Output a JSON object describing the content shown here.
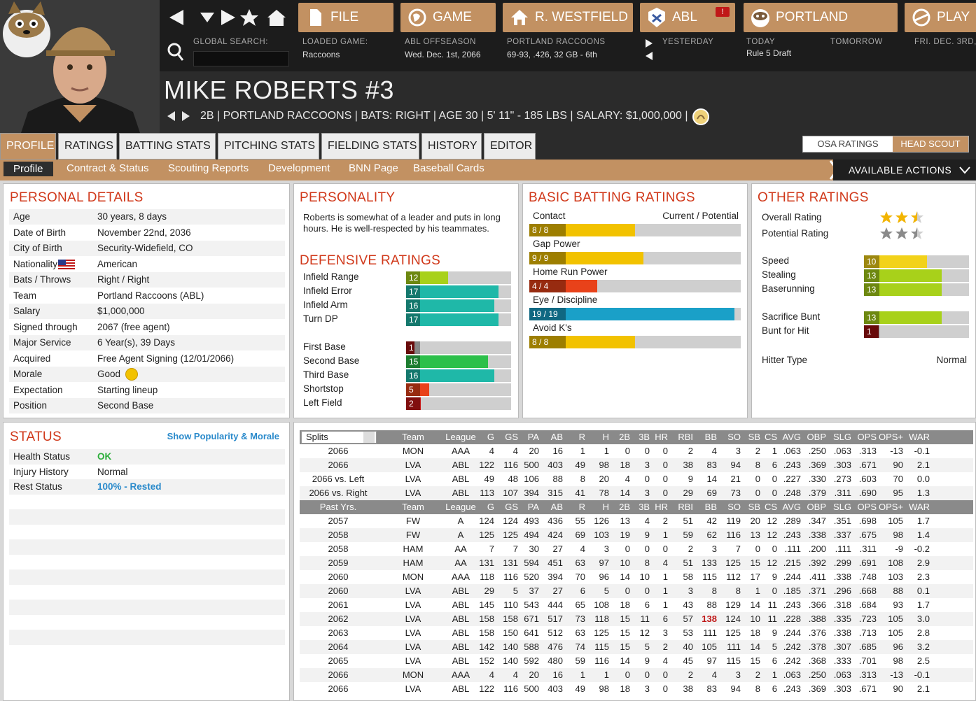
{
  "nav": {
    "file": "FILE",
    "game": "GAME",
    "team": "R. WESTFIELD",
    "league": "ABL",
    "club": "PORTLAND",
    "play": "PLAY",
    "global_search_label": "GLOBAL SEARCH:",
    "loaded_game_label": "LOADED GAME:",
    "loaded_game_value": "Raccoons",
    "abl_offseason_label": "ABL OFFSEASON",
    "abl_offseason_date": "Wed. Dec. 1st, 2066",
    "team_label": "PORTLAND RACCOONS",
    "team_record": "69-93, .426, 32 GB - 6th",
    "yesterday_label": "YESTERDAY",
    "today_label": "TODAY",
    "today_value": "Rule 5 Draft",
    "tomorrow_label": "TOMORROW",
    "date_label": "FRI. DEC. 3RD,",
    "badge": "!"
  },
  "player": {
    "name": "MIKE ROBERTS  #3",
    "bio": "2B | PORTLAND RACCOONS  |  BATS: RIGHT  |  AGE 30  |  5' 11\" - 185 LBS  |  SALARY: $1,000,000  |"
  },
  "tabs": [
    "PROFILE",
    "RATINGS",
    "BATTING STATS",
    "PITCHING STATS",
    "FIELDING STATS",
    "HISTORY",
    "EDITOR"
  ],
  "scout_toggle": {
    "osa": "OSA RATINGS",
    "head": "HEAD SCOUT"
  },
  "subtabs": [
    "Profile",
    "Contract & Status",
    "Scouting Reports",
    "Development",
    "BNN Page",
    "Baseball Cards"
  ],
  "available_actions": "AVAILABLE ACTIONS",
  "personal": {
    "title": "PERSONAL DETAILS",
    "rows": [
      {
        "k": "Age",
        "v": "30 years, 8 days"
      },
      {
        "k": "Date of Birth",
        "v": "November 22nd, 2036"
      },
      {
        "k": "City of Birth",
        "v": "Security-Widefield, CO"
      },
      {
        "k": "Nationality",
        "v": "American"
      },
      {
        "k": "Bats / Throws",
        "v": "Right / Right"
      },
      {
        "k": "Team",
        "v": "Portland Raccoons (ABL)"
      },
      {
        "k": "Salary",
        "v": "$1,000,000"
      },
      {
        "k": "Signed through",
        "v": "2067 (free agent)"
      },
      {
        "k": "Major Service",
        "v": "6 Year(s), 39 Days"
      },
      {
        "k": "Acquired",
        "v": "Free Agent Signing (12/01/2066)"
      },
      {
        "k": "Morale",
        "v": "Good"
      },
      {
        "k": "Expectation",
        "v": "Starting lineup"
      },
      {
        "k": "Position",
        "v": "Second Base"
      }
    ]
  },
  "personality": {
    "title": "PERSONALITY",
    "text": "Roberts is somewhat of a leader and puts in long hours. He is well-respected by his teammates."
  },
  "defense": {
    "title": "DEFENSIVE RATINGS",
    "rows": [
      {
        "k": "Infield Range",
        "v": "12",
        "pct": 0.4,
        "color": "#a8d11a"
      },
      {
        "k": "Infield Error",
        "v": "17",
        "pct": 0.88,
        "color": "#1fb8a8"
      },
      {
        "k": "Infield Arm",
        "v": "16",
        "pct": 0.84,
        "color": "#1fb8a8"
      },
      {
        "k": "Turn DP",
        "v": "17",
        "pct": 0.88,
        "color": "#1fb8a8"
      },
      {
        "k": "First Base",
        "v": "1",
        "pct": 0.08,
        "color": "#a01010"
      },
      {
        "k": "Second Base",
        "v": "15",
        "pct": 0.78,
        "color": "#2cc04a"
      },
      {
        "k": "Third Base",
        "v": "16",
        "pct": 0.84,
        "color": "#1fb8a8"
      },
      {
        "k": "Shortstop",
        "v": "5",
        "pct": 0.22,
        "color": "#e8421a"
      },
      {
        "k": "Left Field",
        "v": "2",
        "pct": 0.14,
        "color": "#c61818"
      }
    ]
  },
  "batting": {
    "title": "BASIC BATTING RATINGS",
    "header": "Current / Potential",
    "rows": [
      {
        "k": "Contact",
        "v": "8 / 8",
        "pct": 0.5,
        "color": "#f2c200"
      },
      {
        "k": "Gap Power",
        "v": "9 / 9",
        "pct": 0.54,
        "color": "#f2c200"
      },
      {
        "k": "Home Run Power",
        "v": "4 / 4",
        "pct": 0.32,
        "color": "#e8421a"
      },
      {
        "k": "Eye / Discipline",
        "v": "19 / 19",
        "pct": 0.97,
        "color": "#1aa0c8"
      },
      {
        "k": "Avoid K's",
        "v": "8 / 8",
        "pct": 0.5,
        "color": "#f2c200"
      }
    ]
  },
  "other": {
    "title": "OTHER RATINGS",
    "overall_label": "Overall Rating",
    "overall_stars": 2.5,
    "potential_label": "Potential Rating",
    "potential_stars": 2.5,
    "rows": [
      {
        "k": "Speed",
        "v": "10",
        "pct": 0.6,
        "color": "#f2d21a"
      },
      {
        "k": "Stealing",
        "v": "13",
        "pct": 0.74,
        "color": "#a8d11a"
      },
      {
        "k": "Baserunning",
        "v": "13",
        "pct": 0.74,
        "color": "#a8d11a"
      },
      {
        "k": "Sacrifice Bunt",
        "v": "13",
        "pct": 0.74,
        "color": "#a8d11a"
      },
      {
        "k": "Bunt for Hit",
        "v": "1",
        "pct": 0.14,
        "color": "#a01010"
      }
    ],
    "hitter_type_label": "Hitter Type",
    "hitter_type": "Normal"
  },
  "status": {
    "title": "STATUS",
    "link": "Show Popularity & Morale",
    "rows": [
      {
        "k": "Health Status",
        "v": "OK"
      },
      {
        "k": "Injury History",
        "v": "Normal"
      },
      {
        "k": "Rest Status",
        "v": "100% - Rested"
      }
    ]
  },
  "stats": {
    "splits_label": "Splits",
    "columns": [
      "Team",
      "League",
      "G",
      "GS",
      "PA",
      "AB",
      "R",
      "H",
      "2B",
      "3B",
      "HR",
      "RBI",
      "BB",
      "SO",
      "SB",
      "CS",
      "AVG",
      "OBP",
      "SLG",
      "OPS",
      "OPS+",
      "WAR"
    ],
    "past_label": "Past Yrs.",
    "current": [
      [
        "2066",
        "MON",
        "AAA",
        "4",
        "4",
        "20",
        "16",
        "1",
        "1",
        "0",
        "0",
        "0",
        "2",
        "4",
        "3",
        "2",
        "1",
        ".063",
        ".250",
        ".063",
        ".313",
        "-13",
        "-0.1"
      ],
      [
        "2066",
        "LVA",
        "ABL",
        "122",
        "116",
        "500",
        "403",
        "49",
        "98",
        "18",
        "3",
        "0",
        "38",
        "83",
        "94",
        "8",
        "6",
        ".243",
        ".369",
        ".303",
        ".671",
        "90",
        "2.1"
      ],
      [
        "2066 vs. Left",
        "LVA",
        "ABL",
        "49",
        "48",
        "106",
        "88",
        "8",
        "20",
        "4",
        "0",
        "0",
        "9",
        "14",
        "21",
        "0",
        "0",
        ".227",
        ".330",
        ".273",
        ".603",
        "70",
        "0.0"
      ],
      [
        "2066 vs. Right",
        "LVA",
        "ABL",
        "113",
        "107",
        "394",
        "315",
        "41",
        "78",
        "14",
        "3",
        "0",
        "29",
        "69",
        "73",
        "0",
        "0",
        ".248",
        ".379",
        ".311",
        ".690",
        "95",
        "1.3"
      ]
    ],
    "past": [
      [
        "2057",
        "FW",
        "A",
        "124",
        "124",
        "493",
        "436",
        "55",
        "126",
        "13",
        "4",
        "2",
        "51",
        "42",
        "119",
        "20",
        "12",
        ".289",
        ".347",
        ".351",
        ".698",
        "105",
        "1.7"
      ],
      [
        "2058",
        "FW",
        "A",
        "125",
        "125",
        "494",
        "424",
        "69",
        "103",
        "19",
        "9",
        "1",
        "59",
        "62",
        "116",
        "13",
        "12",
        ".243",
        ".338",
        ".337",
        ".675",
        "98",
        "1.4"
      ],
      [
        "2058",
        "HAM",
        "AA",
        "7",
        "7",
        "30",
        "27",
        "4",
        "3",
        "0",
        "0",
        "0",
        "2",
        "3",
        "7",
        "0",
        "0",
        ".111",
        ".200",
        ".111",
        ".311",
        "-9",
        "-0.2"
      ],
      [
        "2059",
        "HAM",
        "AA",
        "131",
        "131",
        "594",
        "451",
        "63",
        "97",
        "10",
        "8",
        "4",
        "51",
        "133",
        "125",
        "15",
        "12",
        ".215",
        ".392",
        ".299",
        ".691",
        "108",
        "2.9"
      ],
      [
        "2060",
        "MON",
        "AAA",
        "118",
        "116",
        "520",
        "394",
        "70",
        "96",
        "14",
        "10",
        "1",
        "58",
        "115",
        "112",
        "17",
        "9",
        ".244",
        ".411",
        ".338",
        ".748",
        "103",
        "2.3"
      ],
      [
        "2060",
        "LVA",
        "ABL",
        "29",
        "5",
        "37",
        "27",
        "6",
        "5",
        "0",
        "0",
        "1",
        "3",
        "8",
        "8",
        "1",
        "0",
        ".185",
        ".371",
        ".296",
        ".668",
        "88",
        "0.1"
      ],
      [
        "2061",
        "LVA",
        "ABL",
        "145",
        "110",
        "543",
        "444",
        "65",
        "108",
        "18",
        "6",
        "1",
        "43",
        "88",
        "129",
        "14",
        "11",
        ".243",
        ".366",
        ".318",
        ".684",
        "93",
        "1.7"
      ],
      [
        "2062",
        "LVA",
        "ABL",
        "158",
        "158",
        "671",
        "517",
        "73",
        "118",
        "15",
        "11",
        "6",
        "57",
        "138",
        "124",
        "10",
        "11",
        ".228",
        ".388",
        ".335",
        ".723",
        "105",
        "3.0"
      ],
      [
        "2063",
        "LVA",
        "ABL",
        "158",
        "150",
        "641",
        "512",
        "63",
        "125",
        "15",
        "12",
        "3",
        "53",
        "111",
        "125",
        "18",
        "9",
        ".244",
        ".376",
        ".338",
        ".713",
        "105",
        "2.8"
      ],
      [
        "2064",
        "LVA",
        "ABL",
        "142",
        "140",
        "588",
        "476",
        "74",
        "115",
        "15",
        "5",
        "2",
        "40",
        "105",
        "111",
        "14",
        "5",
        ".242",
        ".378",
        ".307",
        ".685",
        "96",
        "3.2"
      ],
      [
        "2065",
        "LVA",
        "ABL",
        "152",
        "140",
        "592",
        "480",
        "59",
        "116",
        "14",
        "9",
        "4",
        "45",
        "97",
        "115",
        "15",
        "6",
        ".242",
        ".368",
        ".333",
        ".701",
        "98",
        "2.5"
      ],
      [
        "2066",
        "MON",
        "AAA",
        "4",
        "4",
        "20",
        "16",
        "1",
        "1",
        "0",
        "0",
        "0",
        "2",
        "4",
        "3",
        "2",
        "1",
        ".063",
        ".250",
        ".063",
        ".313",
        "-13",
        "-0.1"
      ],
      [
        "2066",
        "LVA",
        "ABL",
        "122",
        "116",
        "500",
        "403",
        "49",
        "98",
        "18",
        "3",
        "0",
        "38",
        "83",
        "94",
        "8",
        "6",
        ".243",
        ".369",
        ".303",
        ".671",
        "90",
        "2.1"
      ]
    ]
  },
  "colors": {
    "accent": "#c29162",
    "title_red": "#d0381a",
    "link_blue": "#2a8acb",
    "ok_green": "#2cae3a",
    "league_leader": "#c01818"
  }
}
